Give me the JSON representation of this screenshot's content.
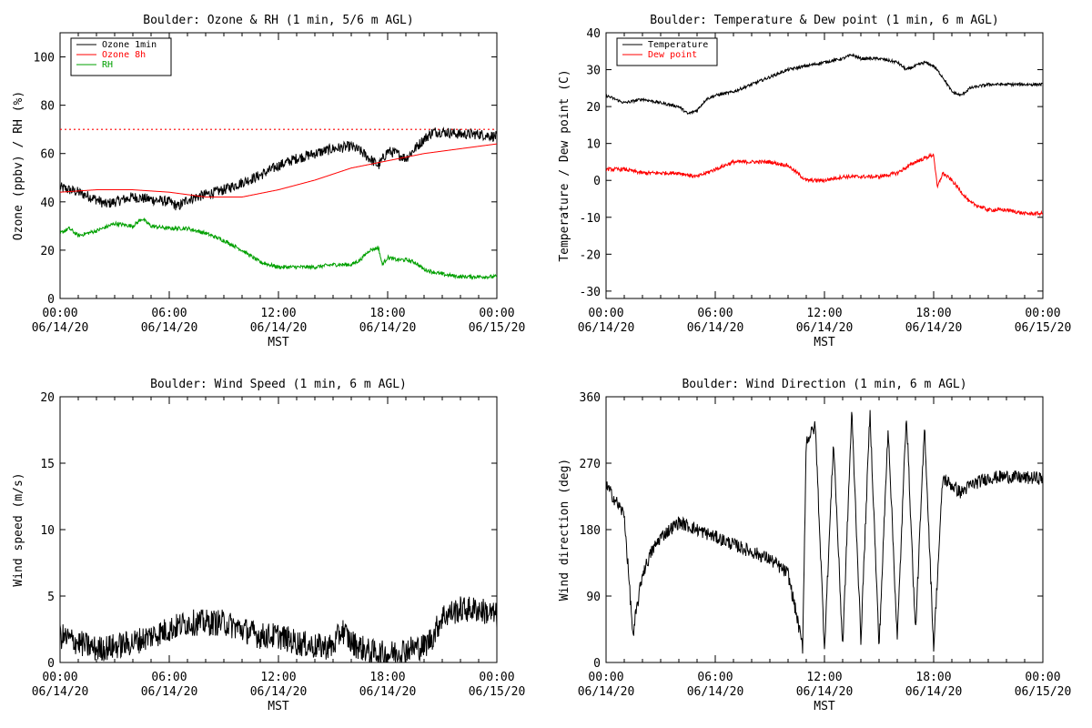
{
  "chart_data": [
    {
      "type": "line",
      "title": "Boulder: Ozone & RH (1 min, 5/6 m AGL)",
      "xlabel": "MST",
      "ylabel": "Ozone (ppbv) / RH (%)",
      "ylim": [
        0,
        110
      ],
      "yticks": [
        0,
        20,
        40,
        60,
        80,
        100
      ],
      "xlim": [
        0,
        24
      ],
      "xticks": [
        {
          "value": 0,
          "time": "00:00",
          "date": "06/14/20"
        },
        {
          "value": 6,
          "time": "06:00",
          "date": "06/14/20"
        },
        {
          "value": 12,
          "time": "12:00",
          "date": "06/14/20"
        },
        {
          "value": 18,
          "time": "18:00",
          "date": "06/14/20"
        },
        {
          "value": 24,
          "time": "00:00",
          "date": "06/15/20"
        }
      ],
      "legend": "top-left",
      "reference_line": {
        "value": 70,
        "color": "#ff0000",
        "style": "dotted"
      },
      "series": [
        {
          "name": "Ozone 1min",
          "color": "#000000",
          "noise": 2.2,
          "x": [
            0,
            1,
            2,
            2.5,
            3,
            4,
            5,
            6,
            6.5,
            7,
            8,
            9,
            10,
            11,
            12,
            13,
            14,
            15,
            16,
            16.5,
            17,
            17.5,
            18,
            18.5,
            19,
            19.5,
            20,
            20.5,
            21,
            22,
            23,
            24
          ],
          "y": [
            46,
            44,
            41,
            39,
            40,
            42,
            41,
            40,
            38,
            41,
            43,
            45,
            48,
            51,
            55,
            58,
            60,
            62,
            63,
            61,
            58,
            55,
            61,
            60,
            58,
            62,
            66,
            69,
            69,
            68,
            68,
            67
          ]
        },
        {
          "name": "Ozone 8h",
          "color": "#ff0000",
          "noise": 0,
          "x": [
            0,
            2,
            4,
            6,
            8,
            10,
            12,
            14,
            16,
            18,
            20,
            22,
            24
          ],
          "y": [
            44,
            45,
            45,
            44,
            42,
            42,
            45,
            49,
            54,
            57,
            60,
            62,
            64
          ]
        },
        {
          "name": "RH",
          "color": "#00a000",
          "noise": 0.8,
          "x": [
            0,
            0.5,
            1,
            2,
            3,
            4,
            4.5,
            5,
            6,
            7,
            8,
            9,
            10,
            11,
            12,
            13,
            14,
            15,
            16,
            16.5,
            17,
            17.5,
            17.7,
            18,
            18.5,
            19,
            19.5,
            20,
            21,
            22,
            24
          ],
          "y": [
            27,
            29,
            26,
            28,
            31,
            30,
            33,
            30,
            29,
            29,
            27,
            24,
            20,
            15,
            13,
            13,
            13,
            14,
            14,
            16,
            20,
            21,
            14,
            17,
            16,
            16,
            15,
            12,
            10,
            9,
            9
          ]
        }
      ]
    },
    {
      "type": "line",
      "title": "Boulder: Temperature & Dew point (1 min, 6 m AGL)",
      "xlabel": "MST",
      "ylabel": "Temperature / Dew point (C)",
      "ylim": [
        -32,
        40
      ],
      "yticks": [
        -30,
        -20,
        -10,
        0,
        10,
        20,
        30,
        40
      ],
      "xlim": [
        0,
        24
      ],
      "xticks": [
        {
          "value": 0,
          "time": "00:00",
          "date": "06/14/20"
        },
        {
          "value": 6,
          "time": "06:00",
          "date": "06/14/20"
        },
        {
          "value": 12,
          "time": "12:00",
          "date": "06/14/20"
        },
        {
          "value": 18,
          "time": "18:00",
          "date": "06/14/20"
        },
        {
          "value": 24,
          "time": "00:00",
          "date": "06/15/20"
        }
      ],
      "legend": "top-left",
      "series": [
        {
          "name": "Temperature",
          "color": "#000000",
          "noise": 0.4,
          "x": [
            0,
            0.5,
            1,
            2,
            3,
            4,
            4.5,
            5,
            5.5,
            6,
            7,
            8,
            9,
            10,
            11,
            12,
            13,
            13.5,
            14,
            15,
            16,
            16.5,
            17,
            17.5,
            18,
            18.5,
            19,
            19.5,
            20,
            21,
            22,
            24
          ],
          "y": [
            23,
            22,
            21,
            22,
            21,
            20,
            18,
            19,
            22,
            23,
            24,
            26,
            28,
            30,
            31,
            32,
            33,
            34,
            33,
            33,
            32,
            30,
            31,
            32,
            31,
            28,
            24,
            23,
            25,
            26,
            26,
            26
          ]
        },
        {
          "name": "Dew point",
          "color": "#ff0000",
          "noise": 0.5,
          "x": [
            0,
            1,
            2,
            3,
            4,
            5,
            6,
            7,
            8,
            9,
            10,
            10.5,
            11,
            12,
            13,
            14,
            15,
            16,
            17,
            17.5,
            18,
            18.2,
            18.5,
            19,
            20,
            21,
            22,
            23,
            24
          ],
          "y": [
            3,
            3,
            2,
            2,
            2,
            1,
            3,
            5,
            5,
            5,
            4,
            2,
            0,
            0,
            1,
            1,
            1,
            2,
            5,
            6,
            7,
            -2,
            2,
            0,
            -6,
            -8,
            -8,
            -9,
            -9
          ]
        }
      ]
    },
    {
      "type": "line",
      "title": "Boulder: Wind Speed (1 min, 6 m AGL)",
      "xlabel": "MST",
      "ylabel": "Wind speed (m/s)",
      "ylim": [
        0,
        20
      ],
      "yticks": [
        0,
        5,
        10,
        15,
        20
      ],
      "xlim": [
        0,
        24
      ],
      "xticks": [
        {
          "value": 0,
          "time": "00:00",
          "date": "06/14/20"
        },
        {
          "value": 6,
          "time": "06:00",
          "date": "06/14/20"
        },
        {
          "value": 12,
          "time": "12:00",
          "date": "06/14/20"
        },
        {
          "value": 18,
          "time": "18:00",
          "date": "06/14/20"
        },
        {
          "value": 24,
          "time": "00:00",
          "date": "06/15/20"
        }
      ],
      "series": [
        {
          "name": "",
          "color": "#000000",
          "noise": 1.0,
          "clip_min": 0,
          "x": [
            0,
            1,
            2,
            3,
            4,
            5,
            6,
            7,
            8,
            9,
            10,
            11,
            12,
            13,
            14,
            15,
            15.5,
            16,
            17,
            18,
            19,
            20,
            20.5,
            21,
            22,
            23,
            24
          ],
          "y": [
            2,
            1.5,
            1,
            1.2,
            1.5,
            2,
            2.5,
            3,
            3,
            3,
            2.5,
            2,
            2,
            1.5,
            1.2,
            1.2,
            2.5,
            1.5,
            0.8,
            0.6,
            1,
            1.2,
            2,
            3.5,
            4,
            4,
            3.5
          ]
        }
      ]
    },
    {
      "type": "line",
      "title": "Boulder: Wind Direction (1 min, 6 m AGL)",
      "xlabel": "MST",
      "ylabel": "Wind direction (deg)",
      "ylim": [
        0,
        360
      ],
      "yticks": [
        0,
        90,
        180,
        270,
        360
      ],
      "xlim": [
        0,
        24
      ],
      "xticks": [
        {
          "value": 0,
          "time": "00:00",
          "date": "06/14/20"
        },
        {
          "value": 6,
          "time": "06:00",
          "date": "06/14/20"
        },
        {
          "value": 12,
          "time": "12:00",
          "date": "06/14/20"
        },
        {
          "value": 18,
          "time": "18:00",
          "date": "06/14/20"
        },
        {
          "value": 24,
          "time": "00:00",
          "date": "06/15/20"
        }
      ],
      "series": [
        {
          "name": "",
          "color": "#000000",
          "noise": 9,
          "clip_min": 0,
          "clip_max": 360,
          "x": [
            0,
            0.5,
            1,
            1.5,
            1.6,
            2,
            2.5,
            3,
            4,
            5,
            6,
            7,
            8,
            9,
            10,
            10.5,
            10.8,
            11,
            11.5,
            12,
            12.5,
            13,
            13.5,
            14,
            14.5,
            15,
            15.5,
            16,
            16.5,
            17,
            17.5,
            18,
            18.5,
            19,
            19.5,
            20,
            21,
            22,
            23,
            24
          ],
          "y": [
            240,
            220,
            200,
            30,
            60,
            120,
            150,
            170,
            190,
            180,
            170,
            160,
            150,
            140,
            120,
            60,
            20,
            300,
            320,
            20,
            300,
            20,
            340,
            30,
            340,
            20,
            320,
            30,
            340,
            40,
            320,
            20,
            250,
            240,
            230,
            240,
            250,
            252,
            250,
            250
          ]
        }
      ]
    }
  ]
}
